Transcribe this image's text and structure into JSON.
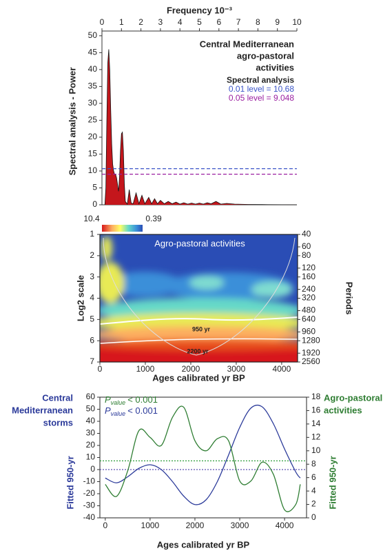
{
  "chart_data": [
    {
      "type": "area",
      "x_label": "Frequency 10⁻³",
      "y_label": "Spectral analysis - Power",
      "title": [
        "Central Mediterranean",
        "agro-pastoral",
        "activities"
      ],
      "legend_title": "Spectral analysis",
      "thresholds": [
        {
          "label": "0.01 level = 10.68",
          "value": 10.68,
          "color": "#3b55c8"
        },
        {
          "label": "0.05 level = 9.048",
          "value": 9.048,
          "color": "#9a1fa0"
        }
      ],
      "xlim": [
        0,
        10
      ],
      "xticks": [
        0,
        1,
        2,
        3,
        4,
        5,
        6,
        7,
        8,
        9,
        10
      ],
      "ylim": [
        0,
        51.4
      ],
      "yticks": [
        0,
        5,
        10,
        15,
        20,
        25,
        30,
        35,
        40,
        45,
        50
      ],
      "x": [
        0.15,
        0.2,
        0.25,
        0.3,
        0.35,
        0.4,
        0.45,
        0.5,
        0.55,
        0.6,
        0.65,
        0.7,
        0.75,
        0.8,
        0.85,
        0.9,
        0.95,
        1.0,
        1.05,
        1.1,
        1.15,
        1.2,
        1.3,
        1.4,
        1.5,
        1.6,
        1.75,
        1.9,
        2.05,
        2.2,
        2.4,
        2.55,
        2.7,
        2.85,
        3.0,
        3.2,
        3.4,
        3.6,
        3.8,
        4.0,
        4.2,
        4.4,
        4.6,
        4.8,
        5.0,
        5.2,
        5.4,
        5.6,
        5.85,
        6.1,
        6.4,
        6.8,
        7.5,
        8.5,
        10
      ],
      "values": [
        0,
        5,
        25,
        42,
        46,
        40,
        28,
        18,
        12,
        10,
        9,
        9,
        8,
        6,
        4,
        8,
        16,
        21,
        21.5,
        16,
        6,
        1,
        0.2,
        4.5,
        0.5,
        0.3,
        3.5,
        0.3,
        2.8,
        0.3,
        2.2,
        0.3,
        1.8,
        0.3,
        1.3,
        0.3,
        1,
        0.3,
        0.8,
        0.2,
        0.6,
        0.2,
        0.5,
        0.2,
        0.5,
        0.2,
        0.6,
        0.3,
        1,
        0.2,
        0.4,
        0.2,
        0.1,
        0.05,
        0
      ],
      "color": "#c4161c"
    },
    {
      "type": "heatmap",
      "title": "Agro-pastoral activities",
      "colorbar": [
        "10.4",
        "0.39"
      ],
      "annotations": [
        "950 yr",
        "2200 yr"
      ],
      "x_label": "Ages calibrated yr BP",
      "y_label": "Log2 scale",
      "y2_label": "Periods",
      "xlim": [
        0,
        4350
      ],
      "xticks": [
        0,
        1000,
        2000,
        3000,
        4000
      ],
      "ylim": [
        1,
        7
      ],
      "yticks": [
        1,
        2,
        3,
        4,
        5,
        6,
        7
      ],
      "y_direction": "down",
      "y2lim": [
        40,
        2560
      ],
      "y2scale": "log",
      "y2ticks": [
        40,
        60,
        80,
        120,
        160,
        240,
        320,
        480,
        640,
        960,
        1280,
        1920,
        2560
      ]
    },
    {
      "type": "line",
      "x_label": "Ages calibrated yr BP",
      "y_label": "Fitted 950-yr",
      "y2_label": "Fitted 950-yr",
      "xlim": [
        -120,
        4490
      ],
      "xticks": [
        0,
        1000,
        2000,
        3000,
        4000
      ],
      "ylim": [
        -40,
        60
      ],
      "yticks": [
        -40,
        -30,
        -20,
        -10,
        0,
        10,
        20,
        30,
        40,
        50,
        60
      ],
      "y2lim": [
        0,
        18
      ],
      "y2ticks": [
        0,
        2,
        4,
        6,
        8,
        10,
        12,
        14,
        16,
        18
      ],
      "x": [
        0,
        250,
        500,
        750,
        1000,
        1250,
        1500,
        1750,
        2000,
        2250,
        2500,
        2750,
        3000,
        3250,
        3500,
        3750,
        4000,
        4250,
        4350
      ],
      "series": [
        {
          "name": [
            "Central",
            "Mediterranean",
            "storms"
          ],
          "color": "#2b3a9a",
          "axis": "y",
          "values": [
            -7,
            -11,
            -6,
            1,
            4,
            0,
            -10,
            -22,
            -29,
            -25,
            -10,
            12,
            35,
            51,
            52,
            38,
            17,
            -2,
            -7
          ]
        },
        {
          "name": [
            "Agro-pastoral",
            "activities"
          ],
          "color": "#2e7d32",
          "axis": "y2",
          "values": [
            5,
            3.2,
            7,
            13,
            12,
            10.8,
            15,
            16.5,
            11.5,
            10,
            11.8,
            11.5,
            5.5,
            5.5,
            8.3,
            6.5,
            1.2,
            2,
            5
          ]
        }
      ],
      "significance": [
        {
          "symbol": "P",
          "subscript": "value",
          "text": "< 0.001",
          "color": "#2e7d32"
        },
        {
          "symbol": "P",
          "subscript": "value",
          "text": "< 0.001",
          "color": "#2b3a9a"
        }
      ],
      "hlines": [
        {
          "value": 8.5,
          "axis": "y2",
          "color": "#2e9d3a"
        },
        {
          "value": 0,
          "axis": "y",
          "color": "#5a4fb0"
        }
      ]
    }
  ]
}
